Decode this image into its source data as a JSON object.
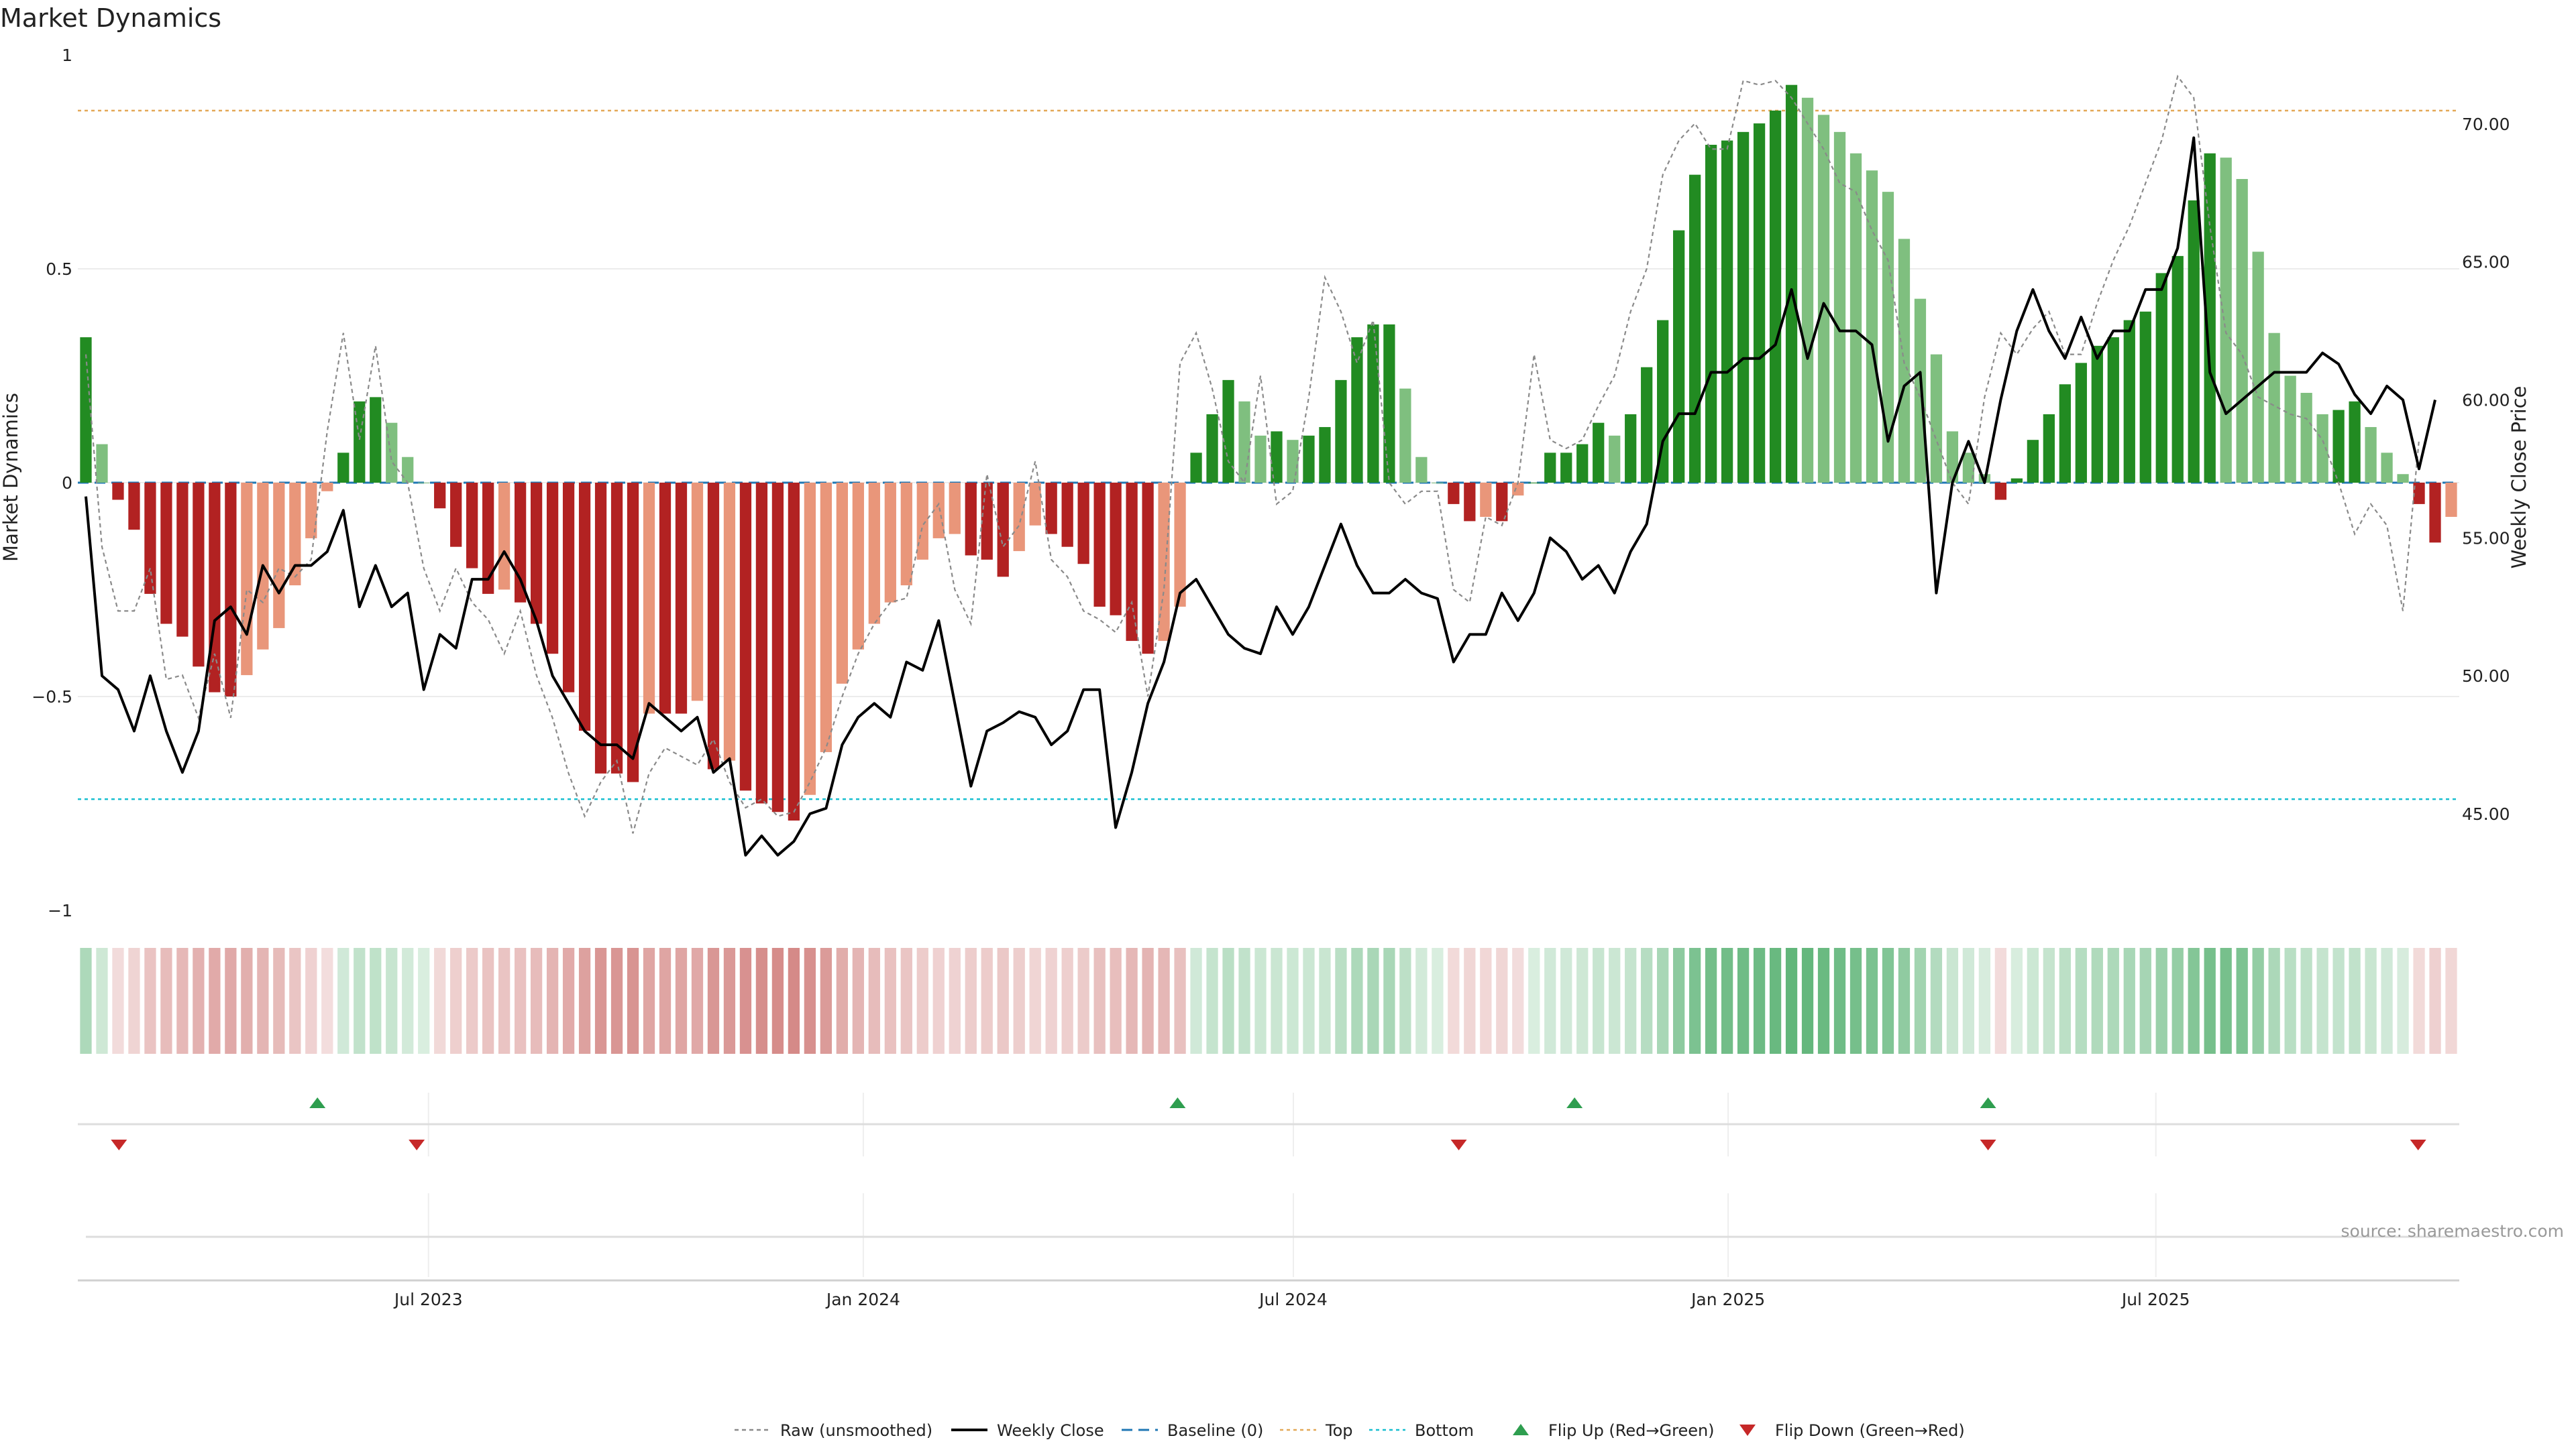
{
  "chart_data": {
    "type": "bar",
    "title": "Market Dynamics",
    "ylabel_left": "Market Dynamics",
    "ylabel_right": "Weekly Close Price",
    "ylim_left": [
      -1,
      1
    ],
    "yticks_left": [
      "1",
      "0.5",
      "0",
      "−0.5",
      "−1"
    ],
    "ylim_right": [
      41.5,
      72.5
    ],
    "yticks_right": [
      "70.00",
      "65.00",
      "60.00",
      "55.00",
      "50.00",
      "45.00"
    ],
    "x_start": "2023-02-06",
    "x_end": "2025-11-03",
    "x_ticks": [
      {
        "date": "2023-07-01",
        "label": "Jul 2023"
      },
      {
        "date": "2024-01-01",
        "label": "Jan 2024"
      },
      {
        "date": "2024-07-01",
        "label": "Jul 2024"
      },
      {
        "date": "2025-01-01",
        "label": "Jan 2025"
      },
      {
        "date": "2025-07-01",
        "label": "Jul 2025"
      }
    ],
    "top_level": 0.87,
    "bottom_level": -0.74,
    "dynamics": [
      0.34,
      0.09,
      -0.04,
      -0.11,
      -0.26,
      -0.33,
      -0.36,
      -0.43,
      -0.49,
      -0.5,
      -0.45,
      -0.39,
      -0.34,
      -0.24,
      -0.13,
      -0.02,
      0.07,
      0.19,
      0.2,
      0.14,
      0.06,
      0.0,
      -0.06,
      -0.15,
      -0.2,
      -0.26,
      -0.25,
      -0.28,
      -0.33,
      -0.4,
      -0.49,
      -0.58,
      -0.68,
      -0.68,
      -0.7,
      -0.54,
      -0.54,
      -0.54,
      -0.51,
      -0.67,
      -0.65,
      -0.72,
      -0.75,
      -0.77,
      -0.79,
      -0.73,
      -0.63,
      -0.47,
      -0.39,
      -0.33,
      -0.28,
      -0.24,
      -0.18,
      -0.13,
      -0.12,
      -0.17,
      -0.18,
      -0.22,
      -0.16,
      -0.1,
      -0.12,
      -0.15,
      -0.19,
      -0.29,
      -0.31,
      -0.37,
      -0.4,
      -0.37,
      -0.29,
      0.07,
      0.16,
      0.24,
      0.19,
      0.11,
      0.12,
      0.1,
      0.11,
      0.13,
      0.24,
      0.34,
      0.37,
      0.37,
      0.22,
      0.06,
      0.0,
      -0.05,
      -0.09,
      -0.08,
      -0.09,
      -0.03,
      0.0,
      0.07,
      0.07,
      0.09,
      0.14,
      0.11,
      0.16,
      0.27,
      0.38,
      0.59,
      0.72,
      0.79,
      0.8,
      0.82,
      0.84,
      0.87,
      0.93,
      0.9,
      0.86,
      0.82,
      0.77,
      0.73,
      0.68,
      0.57,
      0.43,
      0.3,
      0.12,
      0.07,
      0.02,
      -0.04,
      0.01,
      0.1,
      0.16,
      0.23,
      0.28,
      0.32,
      0.34,
      0.38,
      0.4,
      0.49,
      0.53,
      0.66,
      0.77,
      0.76,
      0.71,
      0.54,
      0.35,
      0.25,
      0.21,
      0.16,
      0.17,
      0.19,
      0.13,
      0.07,
      0.02,
      -0.05,
      -0.14,
      -0.08
    ],
    "weekly_close": [
      56.5,
      50.0,
      49.5,
      48.0,
      50.0,
      48.0,
      46.5,
      48.0,
      52.0,
      52.5,
      51.5,
      54.0,
      53.0,
      54.0,
      54.0,
      54.5,
      56.0,
      52.5,
      54.0,
      52.5,
      53.0,
      49.5,
      51.5,
      51.0,
      53.5,
      53.5,
      54.5,
      53.5,
      52.0,
      50.0,
      49.0,
      48.0,
      47.5,
      47.5,
      47.0,
      49.0,
      48.5,
      48.0,
      48.5,
      46.5,
      47.0,
      43.5,
      44.2,
      43.5,
      44.0,
      45.0,
      45.2,
      47.5,
      48.5,
      49.0,
      48.5,
      50.5,
      50.2,
      52.0,
      49.0,
      46.0,
      48.0,
      48.3,
      48.7,
      48.5,
      47.5,
      48.0,
      49.5,
      49.5,
      44.5,
      46.5,
      49.0,
      50.5,
      53.0,
      53.5,
      52.5,
      51.5,
      51.0,
      50.8,
      52.5,
      51.5,
      52.5,
      54.0,
      55.5,
      54.0,
      53.0,
      53.0,
      53.5,
      53.0,
      52.8,
      50.5,
      51.5,
      51.5,
      53.0,
      52.0,
      53.0,
      55.0,
      54.5,
      53.5,
      54.0,
      53.0,
      54.5,
      55.5,
      58.5,
      59.5,
      59.5,
      61.0,
      61.0,
      61.5,
      61.5,
      62.0,
      64.0,
      61.5,
      63.5,
      62.5,
      62.5,
      62.0,
      58.5,
      60.5,
      61.0,
      53.0,
      57.0,
      58.5,
      57.0,
      60.0,
      62.5,
      64.0,
      62.5,
      61.5,
      63.0,
      61.5,
      62.5,
      62.5,
      64.0,
      64.0,
      65.5,
      69.5,
      61.0,
      59.5,
      60.0,
      60.5,
      61.0,
      61.0,
      61.0,
      61.7,
      61.3,
      60.2,
      59.5,
      60.5,
      60.0,
      57.5,
      60.0
    ],
    "raw": [
      0.3,
      -0.15,
      -0.3,
      -0.3,
      -0.2,
      -0.46,
      -0.45,
      -0.55,
      -0.4,
      -0.55,
      -0.25,
      -0.28,
      -0.2,
      -0.22,
      -0.18,
      0.12,
      0.35,
      0.1,
      0.32,
      0.05,
      0.0,
      -0.2,
      -0.3,
      -0.2,
      -0.28,
      -0.32,
      -0.4,
      -0.3,
      -0.45,
      -0.55,
      -0.68,
      -0.78,
      -0.7,
      -0.65,
      -0.82,
      -0.68,
      -0.62,
      -0.64,
      -0.66,
      -0.6,
      -0.7,
      -0.76,
      -0.74,
      -0.78,
      -0.77,
      -0.7,
      -0.62,
      -0.5,
      -0.4,
      -0.33,
      -0.28,
      -0.27,
      -0.1,
      -0.05,
      -0.25,
      -0.33,
      0.02,
      -0.15,
      -0.1,
      0.05,
      -0.18,
      -0.22,
      -0.3,
      -0.32,
      -0.35,
      -0.28,
      -0.5,
      -0.25,
      0.28,
      0.35,
      0.22,
      0.05,
      0.0,
      0.25,
      -0.05,
      -0.02,
      0.2,
      0.48,
      0.4,
      0.28,
      0.38,
      0.0,
      -0.05,
      -0.02,
      -0.02,
      -0.25,
      -0.28,
      -0.08,
      -0.1,
      0.0,
      0.3,
      0.1,
      0.08,
      0.1,
      0.18,
      0.25,
      0.4,
      0.5,
      0.72,
      0.8,
      0.84,
      0.78,
      0.78,
      0.94,
      0.93,
      0.94,
      0.9,
      0.84,
      0.78,
      0.7,
      0.68,
      0.59,
      0.52,
      0.28,
      0.2,
      0.1,
      0.0,
      -0.05,
      0.2,
      0.35,
      0.3,
      0.36,
      0.4,
      0.3,
      0.3,
      0.42,
      0.52,
      0.6,
      0.7,
      0.8,
      0.95,
      0.9,
      0.6,
      0.35,
      0.3,
      0.2,
      0.18,
      0.16,
      0.15,
      0.1,
      0.0,
      -0.12,
      -0.05,
      -0.1,
      -0.3,
      0.1
    ],
    "flips_up": [
      "2023-05-15",
      "2024-05-13",
      "2024-10-28",
      "2025-04-21"
    ],
    "flips_down": [
      "2023-02-20",
      "2023-06-26",
      "2024-09-09",
      "2025-04-21",
      "2025-10-20"
    ],
    "legend": {
      "position": "bottom-center",
      "entries": [
        "Raw (unsmoothed)",
        "Weekly Close",
        "Baseline (0)",
        "Top",
        "Bottom",
        "Flip Up (Red→Green)",
        "Flip Down (Green→Red)"
      ]
    },
    "source": "source: sharemaestro.com"
  },
  "colors": {
    "strong_green": "#228b22",
    "light_green": "#7fbf7f",
    "strong_red": "#b22222",
    "light_red": "#e9967a",
    "close_line": "#000000",
    "raw_line": "#8a8a8a",
    "baseline": "#1f77b4",
    "top": "#e3a857",
    "bottom": "#17becf",
    "flip_up": "#2e9e4f",
    "flip_down": "#c62828"
  }
}
